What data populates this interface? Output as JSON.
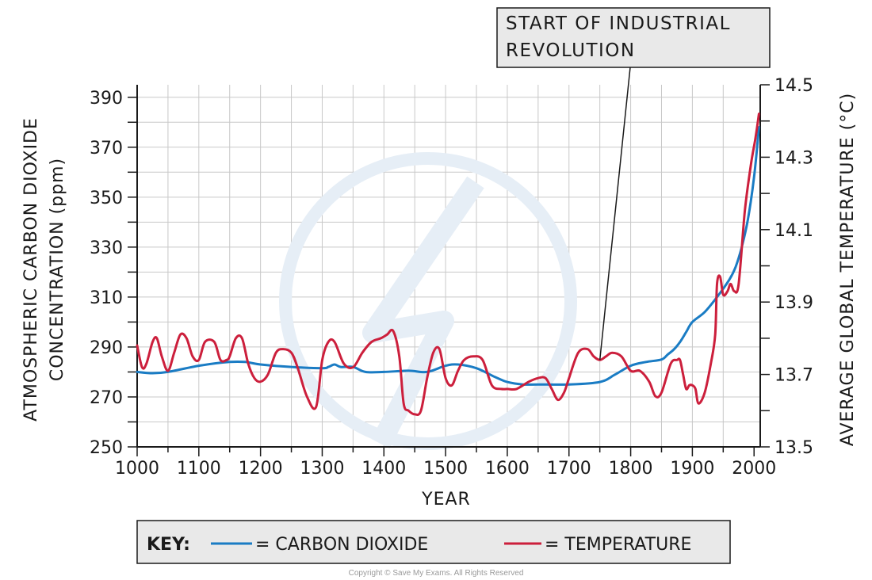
{
  "chart_data": {
    "type": "line",
    "xlabel": "YEAR",
    "ylabel_left_line1": "ATMOSPHERIC CARBON DIOXIDE",
    "ylabel_left_line2": "CONCENTRATION (ppm)",
    "ylabel_right": "AVERAGE GLOBAL TEMPERATURE (°C)",
    "xlim": [
      1000,
      2010
    ],
    "ylim_left": [
      250,
      395
    ],
    "ylim_right": [
      13.5,
      14.5
    ],
    "x_ticks": [
      1000,
      1100,
      1200,
      1300,
      1400,
      1500,
      1600,
      1700,
      1800,
      1900,
      2000
    ],
    "x_tick_labels": [
      "1000",
      "1100",
      "1200",
      "1300",
      "1400",
      "1500",
      "1600",
      "1700",
      "1800",
      "1900",
      "2000"
    ],
    "y_left_ticks": [
      250,
      270,
      290,
      310,
      330,
      350,
      370,
      390
    ],
    "y_left_tick_labels": [
      "250",
      "270",
      "290",
      "310",
      "330",
      "350",
      "370",
      "390"
    ],
    "y_right_ticks": [
      13.5,
      13.7,
      13.9,
      14.1,
      14.3,
      14.5
    ],
    "y_right_tick_labels": [
      "13.5",
      "13.7",
      "13.9",
      "14.1",
      "14.3",
      "14.5"
    ],
    "grid": true,
    "series": [
      {
        "name": "CARBON DIOXIDE",
        "axis": "left",
        "color": "#1a7cc4",
        "x": [
          1000,
          1025,
          1050,
          1100,
          1150,
          1175,
          1200,
          1250,
          1300,
          1310,
          1320,
          1330,
          1350,
          1370,
          1400,
          1440,
          1470,
          1500,
          1520,
          1550,
          1580,
          1600,
          1625,
          1650,
          1700,
          1750,
          1775,
          1800,
          1825,
          1850,
          1860,
          1870,
          1880,
          1890,
          1900,
          1920,
          1940,
          1960,
          1970,
          1980,
          1990,
          2000,
          2008
        ],
        "values": [
          280,
          279.5,
          280,
          282.5,
          284,
          284,
          283,
          282,
          281.5,
          282,
          283,
          282,
          282,
          280,
          280,
          280.5,
          280,
          282.5,
          283,
          281.5,
          278,
          276,
          275,
          275,
          275,
          276,
          279,
          282.5,
          284,
          285,
          287,
          289,
          292,
          296,
          300,
          304,
          310,
          317,
          322,
          330,
          341,
          358,
          378
        ]
      },
      {
        "name": "TEMPERATURE",
        "axis": "right",
        "color": "#cc1f3c",
        "x": [
          1000,
          1008,
          1015,
          1025,
          1032,
          1040,
          1050,
          1060,
          1070,
          1080,
          1090,
          1100,
          1110,
          1125,
          1135,
          1145,
          1150,
          1160,
          1170,
          1180,
          1190,
          1200,
          1212,
          1225,
          1237,
          1250,
          1260,
          1275,
          1290,
          1300,
          1310,
          1320,
          1335,
          1350,
          1365,
          1380,
          1395,
          1405,
          1415,
          1425,
          1432,
          1440,
          1450,
          1460,
          1470,
          1480,
          1490,
          1500,
          1510,
          1520,
          1530,
          1545,
          1560,
          1575,
          1590,
          1600,
          1615,
          1635,
          1650,
          1662,
          1672,
          1682,
          1692,
          1700,
          1715,
          1730,
          1740,
          1750,
          1760,
          1770,
          1785,
          1800,
          1815,
          1830,
          1840,
          1850,
          1865,
          1875,
          1880,
          1885,
          1890,
          1895,
          1900,
          1905,
          1910,
          1920,
          1930,
          1937,
          1940,
          1945,
          1950,
          1957,
          1962,
          1968,
          1975,
          1985,
          1995,
          2002,
          2008
        ],
        "values": [
          13.78,
          13.72,
          13.73,
          13.79,
          13.8,
          13.75,
          13.71,
          13.76,
          13.81,
          13.8,
          13.75,
          13.74,
          13.79,
          13.79,
          13.74,
          13.74,
          13.75,
          13.8,
          13.8,
          13.73,
          13.69,
          13.68,
          13.7,
          13.76,
          13.77,
          13.76,
          13.72,
          13.64,
          13.61,
          13.74,
          13.79,
          13.79,
          13.73,
          13.72,
          13.76,
          13.79,
          13.8,
          13.81,
          13.82,
          13.75,
          13.62,
          13.6,
          13.59,
          13.6,
          13.69,
          13.76,
          13.77,
          13.69,
          13.67,
          13.71,
          13.74,
          13.75,
          13.74,
          13.67,
          13.66,
          13.66,
          13.66,
          13.68,
          13.69,
          13.69,
          13.66,
          13.63,
          13.65,
          13.69,
          13.76,
          13.77,
          13.75,
          13.74,
          13.75,
          13.76,
          13.75,
          13.71,
          13.71,
          13.68,
          13.64,
          13.65,
          13.73,
          13.74,
          13.74,
          13.7,
          13.66,
          13.67,
          13.67,
          13.66,
          13.62,
          13.65,
          13.73,
          13.81,
          13.95,
          13.97,
          13.92,
          13.93,
          13.95,
          13.93,
          13.95,
          14.15,
          14.28,
          14.35,
          14.42
        ]
      }
    ],
    "annotation": {
      "lines": [
        "START OF INDUSTRIAL",
        "REVOLUTION"
      ],
      "pointer_x": 1750,
      "pointer_temp": 13.74
    },
    "legend_placement": "bottom"
  },
  "key": {
    "title": "KEY:",
    "co2_label": "= CARBON  DIOXIDE",
    "temp_label": "= TEMPERATURE"
  },
  "copyright": "Copyright © Save My Exams. All Rights Reserved"
}
